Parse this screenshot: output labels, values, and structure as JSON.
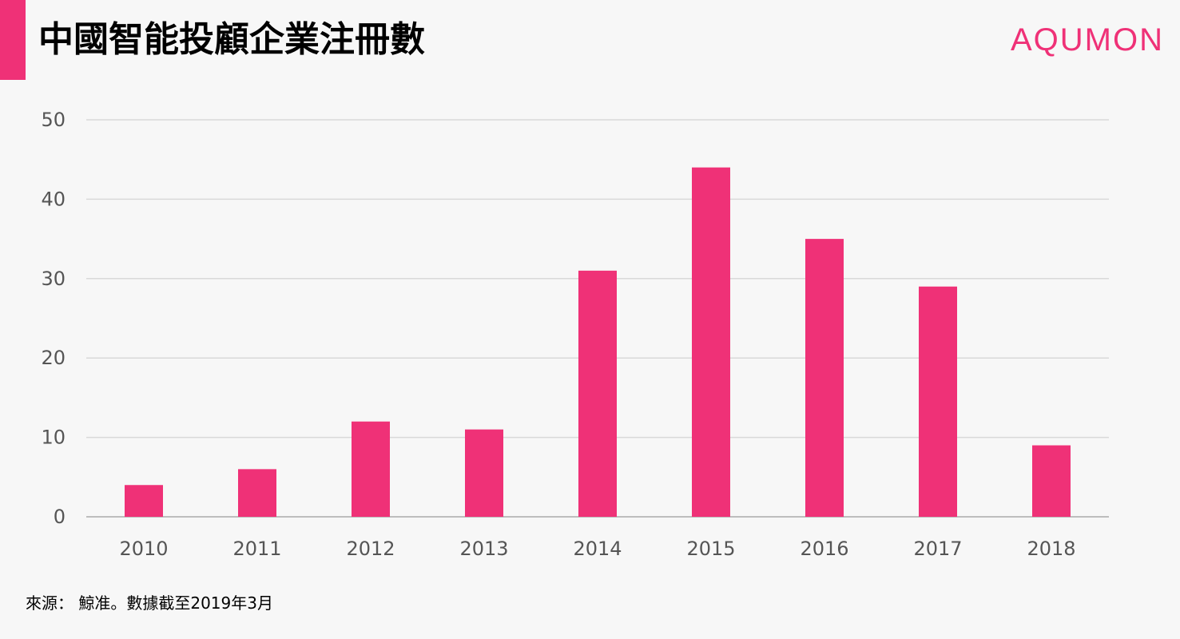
{
  "header": {
    "title": "中國智能投顧企業注冊數",
    "brand": "AQUMON"
  },
  "footer": {
    "source": "來源： 鯨准。數據截至2019年3月"
  },
  "colors": {
    "accent": "#ef3177",
    "background": "#f7f7f7",
    "grid": "#d9d9d9",
    "axis": "#bdbdbd",
    "tick_text": "#555555"
  },
  "chart_data": {
    "type": "bar",
    "title": "中國智能投顧企業注冊數",
    "xlabel": "",
    "ylabel": "",
    "categories": [
      "2010",
      "2011",
      "2012",
      "2013",
      "2014",
      "2015",
      "2016",
      "2017",
      "2018"
    ],
    "values": [
      4,
      6,
      12,
      11,
      31,
      44,
      35,
      29,
      9
    ],
    "ylim": [
      0,
      50
    ],
    "yticks": [
      0,
      10,
      20,
      30,
      40,
      50
    ],
    "grid": true,
    "legend": "none"
  }
}
